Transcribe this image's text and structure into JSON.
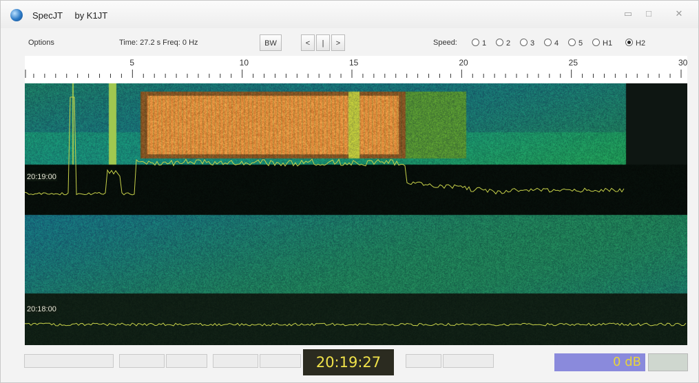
{
  "window": {
    "app_name": "SpecJT",
    "by": "by K1JT",
    "buttons": {
      "minimize": "▭",
      "maximize": "□",
      "close": "✕"
    }
  },
  "menubar": {
    "options_label": "Options",
    "time_freq": "Time: 27.2 s  Freq: 0 Hz",
    "bw_label": "BW",
    "nav_left": "<",
    "nav_mid": "|",
    "nav_right": ">",
    "speed_label": "Speed:",
    "speeds": [
      "1",
      "2",
      "3",
      "4",
      "5",
      "H1",
      "H2"
    ],
    "selected_speed": "H2"
  },
  "scale": {
    "labels": [
      "5",
      "10",
      "15",
      "20",
      "25",
      "30"
    ],
    "max": 30
  },
  "spectrogram": {
    "timestamps": [
      "20:19:00",
      "20:18:00"
    ]
  },
  "status": {
    "clock": "20:19:27",
    "level": "0 dB"
  },
  "colors": {
    "signal_orange": "#e8782a",
    "noise_green": "#3c8a4a",
    "noise_blue": "#2c5c8a",
    "trace": "#c8d24a",
    "clock_text": "#f0e24a"
  }
}
